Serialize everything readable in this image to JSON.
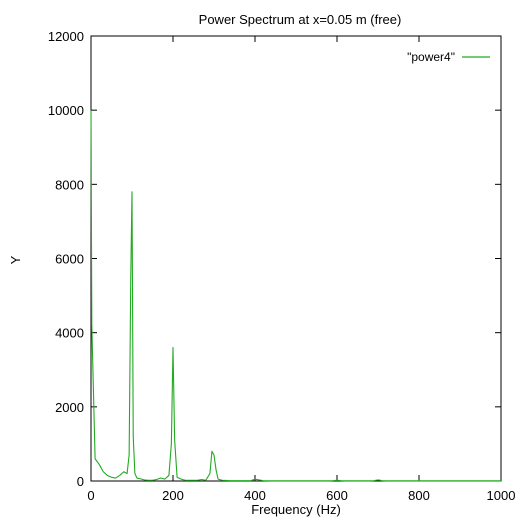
{
  "chart_data": {
    "type": "line",
    "title": "Power Spectrum at x=0.05 m (free)",
    "xlabel": "Frequency (Hz)",
    "ylabel": "Y",
    "xlim": [
      0,
      1000
    ],
    "ylim": [
      0,
      12000
    ],
    "xticks": [
      0,
      200,
      400,
      600,
      800,
      1000
    ],
    "yticks": [
      0,
      2000,
      4000,
      6000,
      8000,
      10000,
      12000
    ],
    "grid": false,
    "legend": "top-right",
    "colors": {
      "series": "#22aa22",
      "axis": "#000000"
    },
    "series": [
      {
        "name": "\"power4\"",
        "x": [
          0,
          2,
          10,
          20,
          30,
          40,
          50,
          60,
          70,
          80,
          88,
          93,
          97,
          100,
          103,
          107,
          112,
          120,
          130,
          140,
          150,
          160,
          170,
          180,
          190,
          196,
          200,
          204,
          210,
          220,
          230,
          240,
          250,
          260,
          270,
          280,
          290,
          295,
          300,
          305,
          310,
          320,
          330,
          340,
          350,
          360,
          370,
          380,
          390,
          400,
          420,
          440,
          460,
          480,
          500,
          520,
          540,
          560,
          580,
          590,
          600,
          610,
          620,
          640,
          660,
          680,
          690,
          700,
          710,
          720,
          740,
          760,
          780,
          790,
          800,
          810,
          820,
          840,
          860,
          880,
          900,
          920,
          940,
          960,
          980,
          1000
        ],
        "y": [
          10000,
          4200,
          600,
          450,
          250,
          150,
          100,
          80,
          150,
          250,
          200,
          700,
          5500,
          7800,
          1200,
          200,
          80,
          60,
          30,
          20,
          20,
          40,
          80,
          50,
          150,
          1000,
          3600,
          1100,
          100,
          50,
          20,
          20,
          20,
          20,
          40,
          20,
          200,
          800,
          700,
          300,
          50,
          20,
          15,
          10,
          10,
          10,
          10,
          10,
          10,
          50,
          10,
          5,
          5,
          5,
          5,
          5,
          5,
          5,
          5,
          10,
          20,
          10,
          5,
          5,
          5,
          5,
          10,
          30,
          10,
          5,
          5,
          5,
          5,
          5,
          5,
          5,
          5,
          5,
          5,
          5,
          5,
          5,
          5,
          5,
          5,
          5
        ]
      }
    ]
  }
}
